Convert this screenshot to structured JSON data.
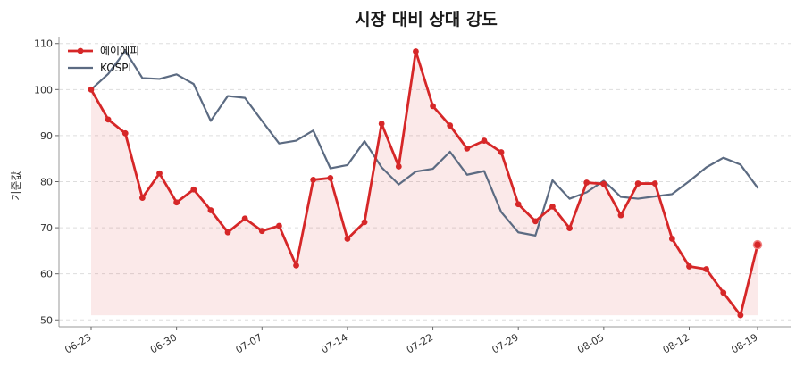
{
  "chart_data": {
    "type": "line",
    "title": "시장 대비 상대 강도",
    "xlabel": "",
    "ylabel": "기준값",
    "ylim": [
      48.5,
      111.5
    ],
    "yticks": [
      50,
      60,
      70,
      80,
      90,
      100,
      110
    ],
    "grid": "y-dashed",
    "legend_position": "top-left",
    "x_tick_labels": [
      "06-23",
      "06-30",
      "07-07",
      "07-14",
      "07-22",
      "07-29",
      "08-05",
      "08-12",
      "08-19"
    ],
    "x_tick_indices": [
      0,
      5,
      10,
      15,
      20,
      25,
      30,
      35,
      39
    ],
    "x": [
      "06-23",
      "06-24",
      "06-25",
      "06-26",
      "06-27",
      "06-30",
      "07-01",
      "07-02",
      "07-03",
      "07-04",
      "07-07",
      "07-08",
      "07-09",
      "07-10",
      "07-11",
      "07-14",
      "07-15",
      "07-16",
      "07-17",
      "07-18",
      "07-22",
      "07-23",
      "07-24",
      "07-25",
      "07-28",
      "07-29",
      "07-30",
      "07-31",
      "08-01",
      "08-04",
      "08-05",
      "08-06",
      "08-07",
      "08-08",
      "08-11",
      "08-12",
      "08-13",
      "08-14",
      "08-18",
      "08-19"
    ],
    "series": [
      {
        "name": "에이에피",
        "color": "#d62728",
        "marker": "circle",
        "fill": true,
        "values": [
          100.0,
          93.5,
          90.5,
          76.5,
          81.8,
          75.5,
          78.3,
          73.8,
          69.0,
          72.0,
          69.3,
          70.4,
          61.8,
          80.4,
          80.8,
          67.6,
          71.2,
          92.6,
          83.3,
          108.3,
          96.4,
          92.2,
          87.2,
          88.9,
          86.4,
          75.1,
          71.4,
          74.6,
          69.9,
          79.8,
          79.5,
          72.7,
          79.6,
          79.6,
          67.6,
          61.6,
          61.0,
          55.9,
          51.0,
          66.3
        ]
      },
      {
        "name": "KOSPI",
        "color": "#5c6b82",
        "marker": "none",
        "fill": false,
        "values": [
          100.0,
          103.4,
          108.4,
          102.5,
          102.3,
          103.3,
          101.2,
          93.2,
          98.6,
          98.2,
          93.2,
          88.3,
          88.9,
          91.1,
          82.9,
          83.6,
          88.8,
          83.1,
          79.4,
          82.2,
          82.8,
          86.5,
          81.5,
          82.3,
          73.4,
          69.0,
          68.3,
          80.3,
          76.3,
          77.7,
          80.2,
          76.7,
          76.3,
          76.8,
          77.3,
          80.1,
          83.1,
          85.2,
          83.7,
          78.7
        ]
      }
    ]
  }
}
